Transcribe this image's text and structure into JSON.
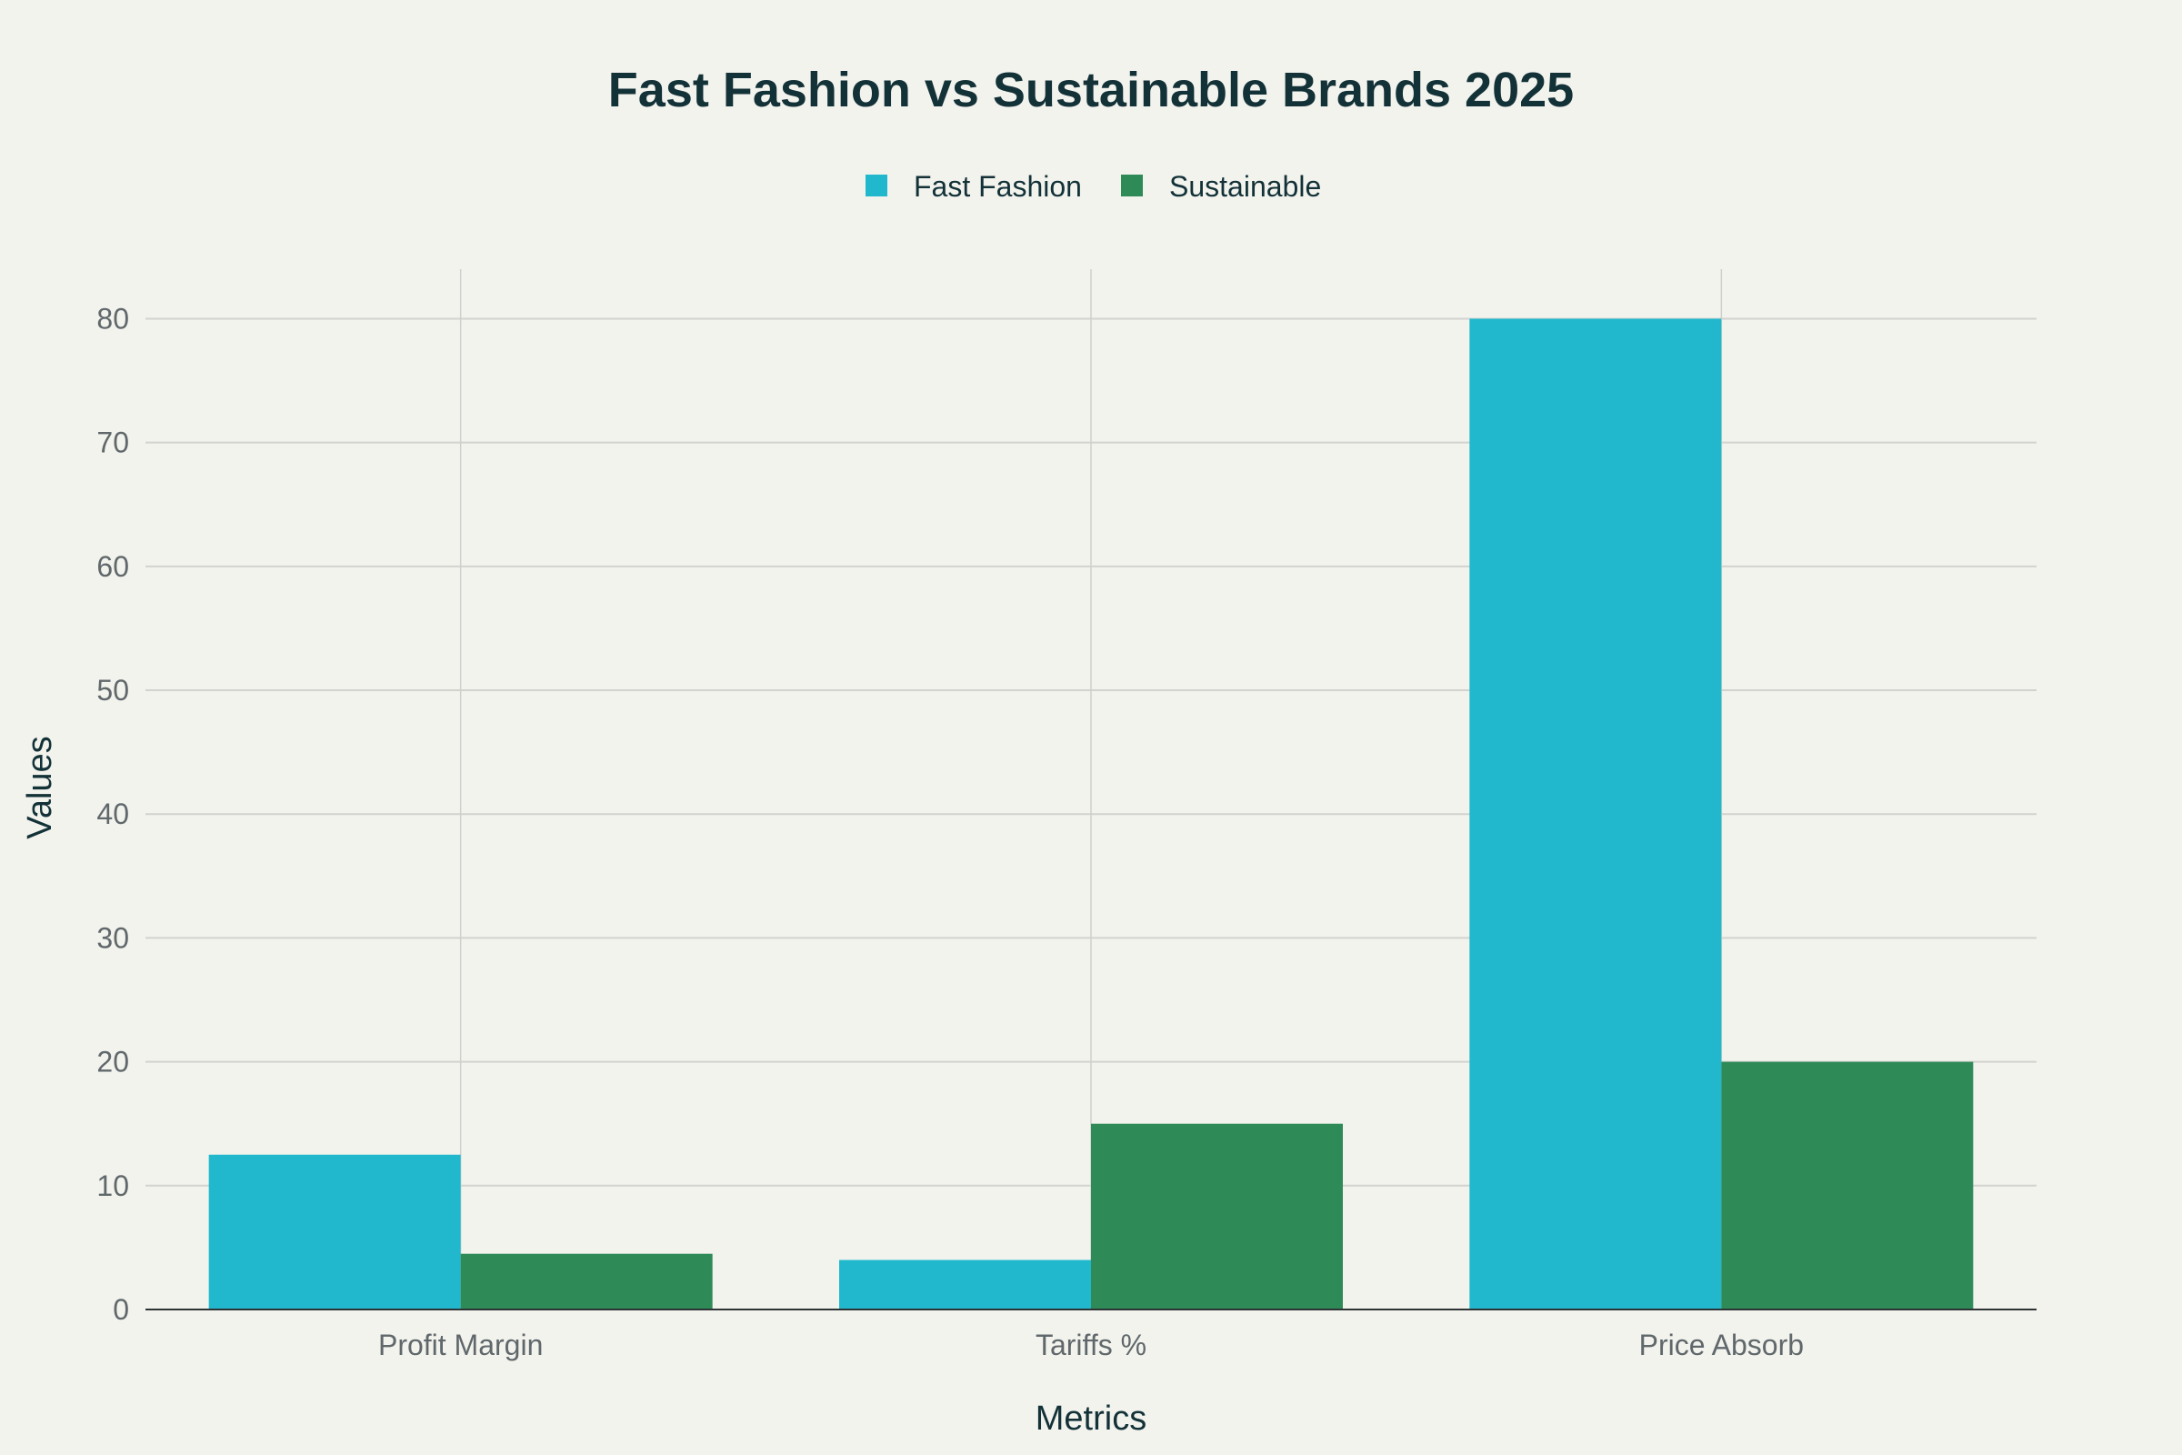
{
  "chart_data": {
    "type": "bar",
    "title": "Fast Fashion vs Sustainable Brands 2025",
    "xlabel": "Metrics",
    "ylabel": "Values",
    "categories": [
      "Profit Margin",
      "Tariffs %",
      "Price Absorb"
    ],
    "series": [
      {
        "name": "Fast Fashion",
        "values": [
          12.5,
          4,
          80
        ],
        "color": "#21b8cd"
      },
      {
        "name": "Sustainable",
        "values": [
          4.5,
          15,
          20
        ],
        "color": "#2e8b57"
      }
    ],
    "ylim": [
      0,
      84
    ],
    "yticks": [
      0,
      10,
      20,
      30,
      40,
      50,
      60,
      70,
      80
    ],
    "grid": true,
    "legend_position": "top-center"
  }
}
